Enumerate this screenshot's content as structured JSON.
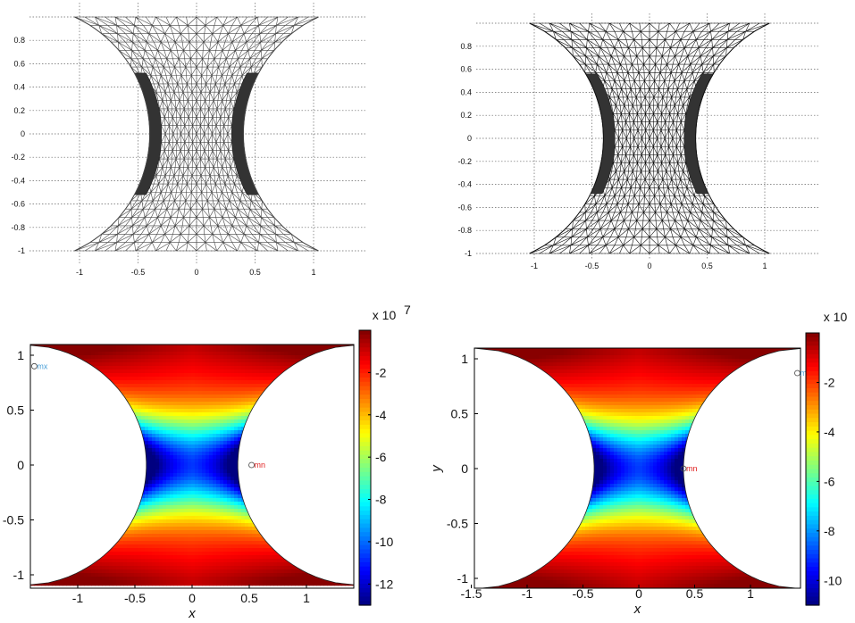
{
  "chart_data": [
    {
      "type": "mesh",
      "panel": "top-left",
      "xlim": [
        -1.5,
        1.5
      ],
      "ylim": [
        -1.1,
        1.1
      ],
      "x_ticks": [
        "-1",
        "-0.5",
        "0",
        "0.5",
        "1"
      ],
      "y_ticks": [
        "0.8",
        "0.6",
        "0.4",
        "0.2",
        "0",
        "-0.2",
        "-0.4",
        "-0.6",
        "-0.8",
        "-1"
      ],
      "grid": true,
      "shaded_region_y": [
        -0.52,
        0.52
      ]
    },
    {
      "type": "mesh",
      "panel": "top-right",
      "xlim": [
        -1.5,
        1.5
      ],
      "ylim": [
        -1.1,
        1.1
      ],
      "x_ticks": [
        "-1",
        "-0.5",
        "0",
        "0.5",
        "1"
      ],
      "y_ticks": [
        "0.8",
        "0.6",
        "0.4",
        "0.2",
        "0",
        "-0.2",
        "-0.4",
        "-0.6",
        "-0.8",
        "-1"
      ],
      "grid": true,
      "shaded_region_y": [
        -0.48,
        0.56
      ]
    },
    {
      "type": "heatmap",
      "panel": "bottom-left",
      "xlabel": "x",
      "ylabel": "",
      "xlim": [
        -1.4,
        1.4
      ],
      "ylim": [
        -1.1,
        1.1
      ],
      "x_ticks": [
        "-1",
        "-0.5",
        "0",
        "0.5",
        "1"
      ],
      "y_ticks": [
        "1",
        "0.5",
        "0",
        "-0.5",
        "-1"
      ],
      "colorbar": {
        "exponent_label": "x 10",
        "exponent": "7",
        "range": [
          -13,
          0
        ],
        "ticks": [
          "-2",
          "-4",
          "-6",
          "-8",
          "-10",
          "-12"
        ],
        "colormap": "jet"
      },
      "markers": [
        {
          "label": "mx",
          "x": -1.38,
          "y": 0.9,
          "color": "#4aa0d8"
        },
        {
          "label": "mn",
          "x": 0.52,
          "y": 0.0,
          "color": "#e02020"
        }
      ]
    },
    {
      "type": "heatmap",
      "panel": "bottom-right",
      "xlabel": "x",
      "ylabel": "y",
      "xlim": [
        -1.45,
        1.45
      ],
      "ylim": [
        -1.1,
        1.1
      ],
      "x_ticks": [
        "-1.5",
        "-1",
        "-0.5",
        "0",
        "0.5",
        "1"
      ],
      "y_ticks": [
        "1",
        "0.5",
        "0",
        "-0.5",
        "-1"
      ],
      "colorbar": {
        "exponent_label": "x 10",
        "exponent": "7",
        "range": [
          -11,
          0
        ],
        "ticks": [
          "-2",
          "-4",
          "-6",
          "-8",
          "-10"
        ],
        "colormap": "jet"
      },
      "markers": [
        {
          "label": "mn",
          "x": 1.42,
          "y": 0.87,
          "color": "#4aa0d8"
        },
        {
          "label": "mn",
          "x": 0.4,
          "y": 0.0,
          "color": "#e02020"
        }
      ]
    }
  ]
}
